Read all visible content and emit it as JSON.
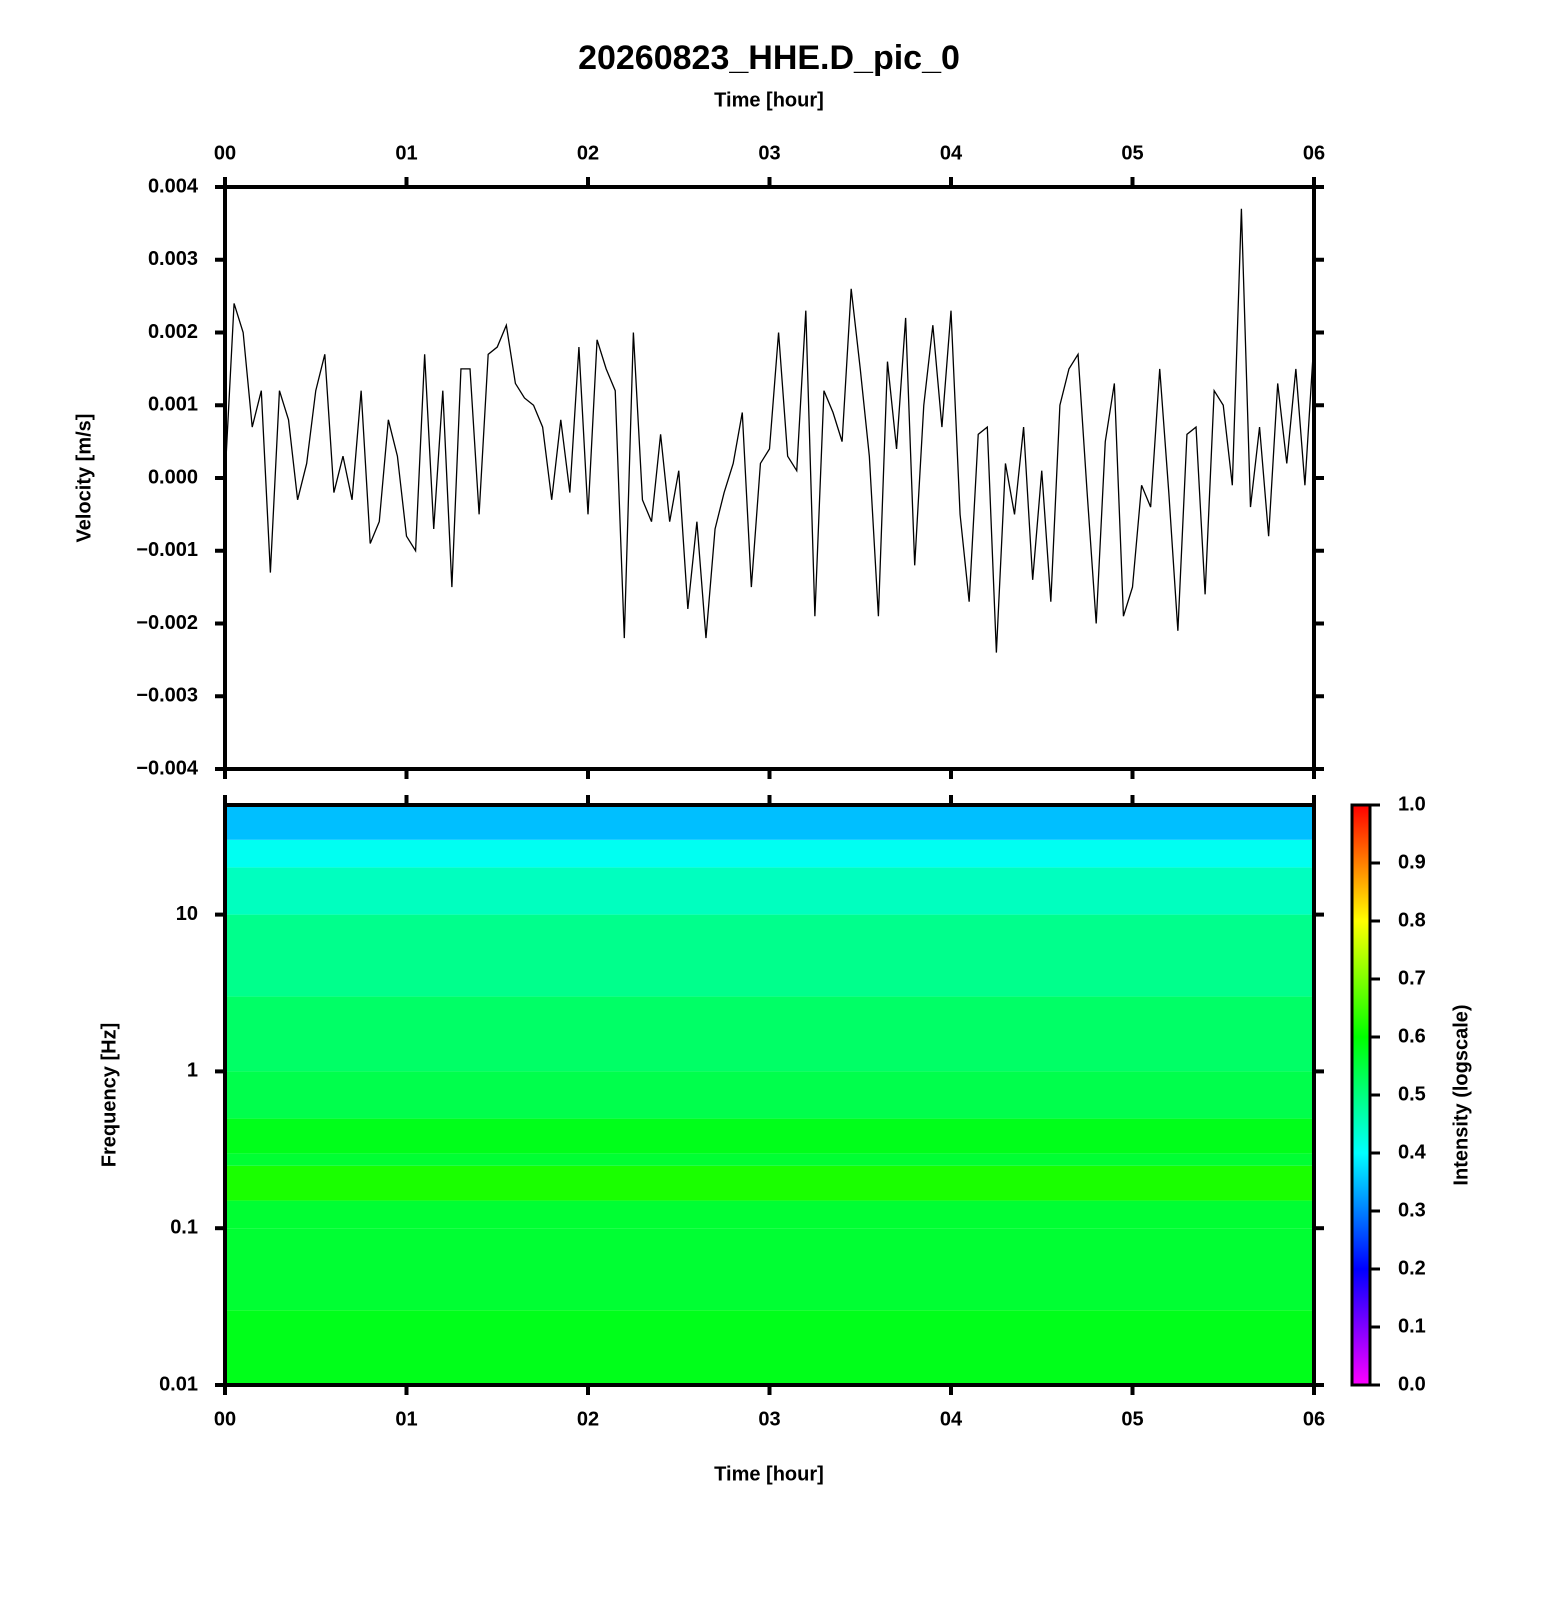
{
  "chart_data": [
    {
      "type": "line",
      "title": "20260823_HHE.D_pic_0",
      "xlabel": "Time [hour]",
      "ylabel": "Velocity [m/s]",
      "color": "#000000",
      "xaxis_position": "top",
      "xlim": [
        0,
        6
      ],
      "xticks": [
        {
          "value": 0,
          "label": "00"
        },
        {
          "value": 1,
          "label": "01"
        },
        {
          "value": 2,
          "label": "02"
        },
        {
          "value": 3,
          "label": "03"
        },
        {
          "value": 4,
          "label": "04"
        },
        {
          "value": 5,
          "label": "05"
        },
        {
          "value": 6,
          "label": "06"
        }
      ],
      "ylim": [
        -0.004,
        0.004
      ],
      "yticks": [
        0.004,
        0.003,
        0.002,
        0.001,
        {
          "value": 0,
          "label": "0.000"
        },
        {
          "value": -0.001,
          "label": "−0.001"
        },
        {
          "value": -0.002,
          "label": "−0.002"
        },
        {
          "value": -0.003,
          "label": "−0.003"
        },
        {
          "value": -0.004,
          "label": "−0.004"
        }
      ],
      "x": [
        0,
        0.05,
        0.1,
        0.15,
        0.2,
        0.25,
        0.3,
        0.35,
        0.4,
        0.45,
        0.5,
        0.55,
        0.6,
        0.65,
        0.7,
        0.75,
        0.8,
        0.85,
        0.9,
        0.95,
        1,
        1.05,
        1.1,
        1.15,
        1.2,
        1.25,
        1.3,
        1.35,
        1.4,
        1.45,
        1.5,
        1.55,
        1.6,
        1.65,
        1.7,
        1.75,
        1.8,
        1.85,
        1.9,
        1.95,
        2,
        2.05,
        2.1,
        2.15,
        2.2,
        2.25,
        2.3,
        2.35,
        2.4,
        2.45,
        2.5,
        2.55,
        2.6,
        2.65,
        2.7,
        2.75,
        2.8,
        2.85,
        2.9,
        2.95,
        3,
        3.05,
        3.1,
        3.15,
        3.2,
        3.25,
        3.3,
        3.35,
        3.4,
        3.45,
        3.5,
        3.55,
        3.6,
        3.65,
        3.7,
        3.75,
        3.8,
        3.85,
        3.9,
        3.95,
        4,
        4.05,
        4.1,
        4.15,
        4.2,
        4.25,
        4.3,
        4.35,
        4.4,
        4.45,
        4.5,
        4.55,
        4.6,
        4.65,
        4.7,
        4.75,
        4.8,
        4.85,
        4.9,
        4.95,
        5,
        5.05,
        5.1,
        5.15,
        5.2,
        5.25,
        5.3,
        5.35,
        5.4,
        5.45,
        5.5,
        5.55,
        5.6,
        5.65,
        5.7,
        5.75,
        5.8,
        5.85,
        5.9,
        5.95,
        6
      ],
      "values": [
        0.0,
        0.0024,
        0.002,
        0.0007,
        0.0012,
        -0.0013,
        0.0012,
        0.0008,
        -0.0003,
        0.0002,
        0.0012,
        0.0017,
        -0.0002,
        0.0003,
        -0.0003,
        0.0012,
        -0.0009,
        -0.0006,
        0.0008,
        0.0003,
        -0.0008,
        -0.001,
        0.0017,
        -0.0007,
        0.0012,
        -0.0015,
        0.0015,
        0.0015,
        -0.0005,
        0.0017,
        0.0018,
        0.0021,
        0.0013,
        0.0011,
        0.001,
        0.0007,
        -0.0003,
        0.0008,
        -0.0002,
        0.0018,
        -0.0005,
        0.0019,
        0.0015,
        0.0012,
        -0.0022,
        0.002,
        -0.0003,
        -0.0006,
        0.0006,
        -0.0006,
        0.0001,
        -0.0018,
        -0.0006,
        -0.0022,
        -0.0007,
        -0.0002,
        0.0002,
        0.0009,
        -0.0015,
        0.0002,
        0.0004,
        0.002,
        0.0003,
        0.0001,
        0.0023,
        -0.0019,
        0.0012,
        0.0009,
        0.0005,
        0.0026,
        0.0015,
        0.0003,
        -0.0019,
        0.0016,
        0.0004,
        0.0022,
        -0.0012,
        0.001,
        0.0021,
        0.0007,
        0.0023,
        -0.0005,
        -0.0017,
        0.0006,
        0.0007,
        -0.0024,
        0.0002,
        -0.0005,
        0.0007,
        -0.0014,
        0.0001,
        -0.0017,
        0.001,
        0.0015,
        0.0017,
        -0.0002,
        -0.002,
        0.0005,
        0.0013,
        -0.0019,
        -0.0015,
        -0.0001,
        -0.0004,
        0.0015,
        -0.0002,
        -0.0021,
        0.0006,
        0.0007,
        -0.0016,
        0.0012,
        0.001,
        -0.0001,
        0.0037,
        -0.0004,
        0.0007,
        -0.0008,
        0.0013,
        0.0002,
        0.0015,
        -0.0001,
        0.0019
      ]
    },
    {
      "type": "heatmap",
      "xlabel": "Time [hour]",
      "ylabel": "Frequency [Hz]",
      "colorbar_label": "Intensity (logscale)",
      "xaxis_position": "bottom",
      "ylog": true,
      "xlim": [
        0,
        6
      ],
      "xticks": [
        {
          "value": 0,
          "label": "00"
        },
        {
          "value": 1,
          "label": "01"
        },
        {
          "value": 2,
          "label": "02"
        },
        {
          "value": 3,
          "label": "03"
        },
        {
          "value": 4,
          "label": "04"
        },
        {
          "value": 5,
          "label": "05"
        },
        {
          "value": 6,
          "label": "06"
        }
      ],
      "ylim": [
        0.01,
        50
      ],
      "yticks": [
        0.01,
        0.1,
        1,
        10
      ],
      "y_edges": [
        0.01,
        0.03,
        0.1,
        0.15,
        0.25,
        0.3,
        0.5,
        1,
        3,
        10,
        20,
        30,
        50
      ],
      "values": [
        0.58,
        0.56,
        0.56,
        0.62,
        0.56,
        0.58,
        0.54,
        0.52,
        0.49,
        0.45,
        0.41,
        0.35
      ],
      "colormap": [
        "#ff00ff",
        "#0000ff",
        "#00ffff",
        "#00ff00",
        "#ffff00",
        "#ff0000"
      ],
      "clim": [
        0,
        1
      ],
      "cticks": [
        {
          "value": 0,
          "label": "0.0"
        },
        0.1,
        0.2,
        0.3,
        0.4,
        0.5,
        0.6,
        0.7,
        0.8,
        0.9,
        {
          "value": 1,
          "label": "1.0"
        }
      ]
    }
  ]
}
